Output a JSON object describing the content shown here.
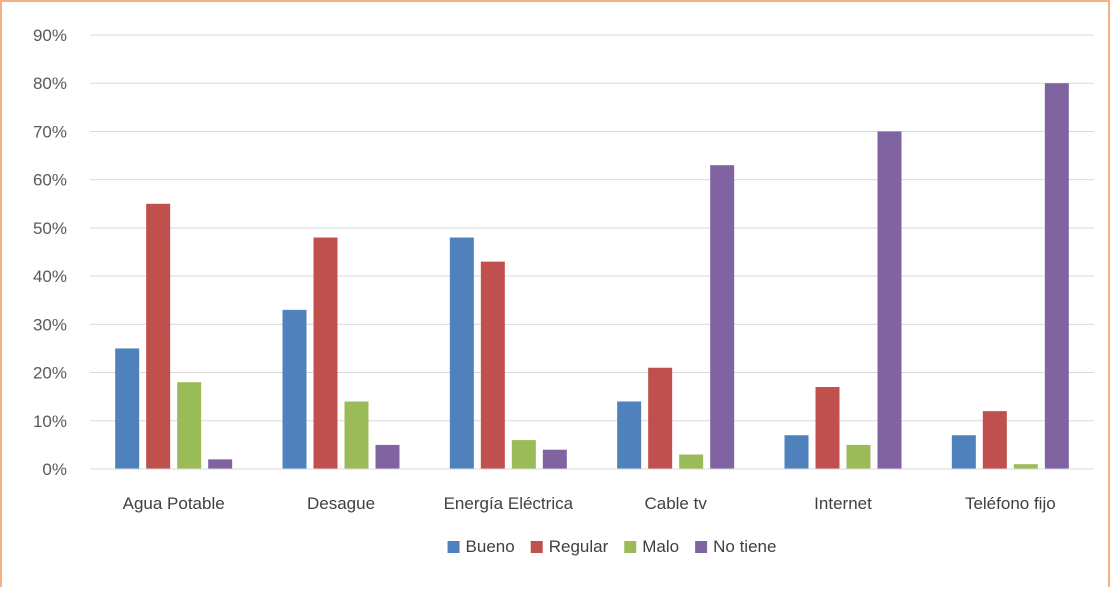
{
  "chart_data": {
    "type": "bar",
    "title": "",
    "xlabel": "",
    "ylabel": "",
    "ylim": [
      0,
      90
    ],
    "y_unit": "%",
    "y_ticks": [
      0,
      10,
      20,
      30,
      40,
      50,
      60,
      70,
      80,
      90
    ],
    "grid": true,
    "legend_position": "bottom",
    "categories": [
      "Agua Potable",
      "Desague",
      "Energía Eléctrica",
      "Cable tv",
      "Internet",
      "Teléfono fijo"
    ],
    "series": [
      {
        "name": "Bueno",
        "color": "#4f81bd",
        "values": [
          25,
          33,
          48,
          14,
          7,
          7
        ]
      },
      {
        "name": "Regular",
        "color": "#c0504d",
        "values": [
          55,
          48,
          43,
          21,
          17,
          12
        ]
      },
      {
        "name": "Malo",
        "color": "#9bbb59",
        "values": [
          18,
          14,
          6,
          3,
          5,
          1
        ]
      },
      {
        "name": "No tiene",
        "color": "#8064a2",
        "values": [
          2,
          5,
          4,
          63,
          70,
          80
        ]
      }
    ]
  }
}
